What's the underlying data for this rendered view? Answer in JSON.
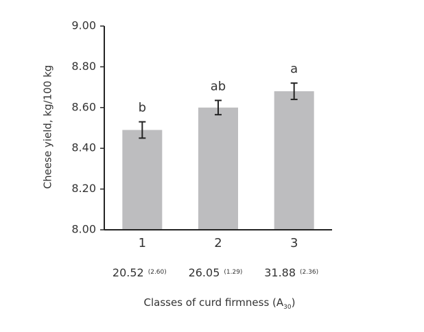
{
  "chart_data": {
    "type": "bar",
    "ylabel": "Cheese yield, kg/100 kg",
    "xlabel": {
      "text": "Classes of curd firmness (A",
      "subscript": "30",
      "close": ")"
    },
    "categories": [
      "1",
      "2",
      "3"
    ],
    "values": [
      8.49,
      8.6,
      8.68
    ],
    "errors": [
      0.04,
      0.035,
      0.04
    ],
    "letters": [
      "b",
      "ab",
      "a"
    ],
    "firmness_labels": [
      [
        "20.52",
        "(2.60)"
      ],
      [
        "26.05",
        "(1.29)"
      ],
      [
        "31.88",
        "(2.36)"
      ]
    ],
    "color": "#bdbdbf",
    "ylim": [
      8,
      9
    ],
    "yticks": [
      {
        "value": 8,
        "label": "8.00"
      },
      {
        "value": 8.2,
        "label": "8.20"
      },
      {
        "value": 8.4,
        "label": "8.40"
      },
      {
        "value": 8.6,
        "label": "8.60"
      },
      {
        "value": 8.8,
        "label": "8.80"
      },
      {
        "value": 9,
        "label": "9.00"
      }
    ]
  }
}
